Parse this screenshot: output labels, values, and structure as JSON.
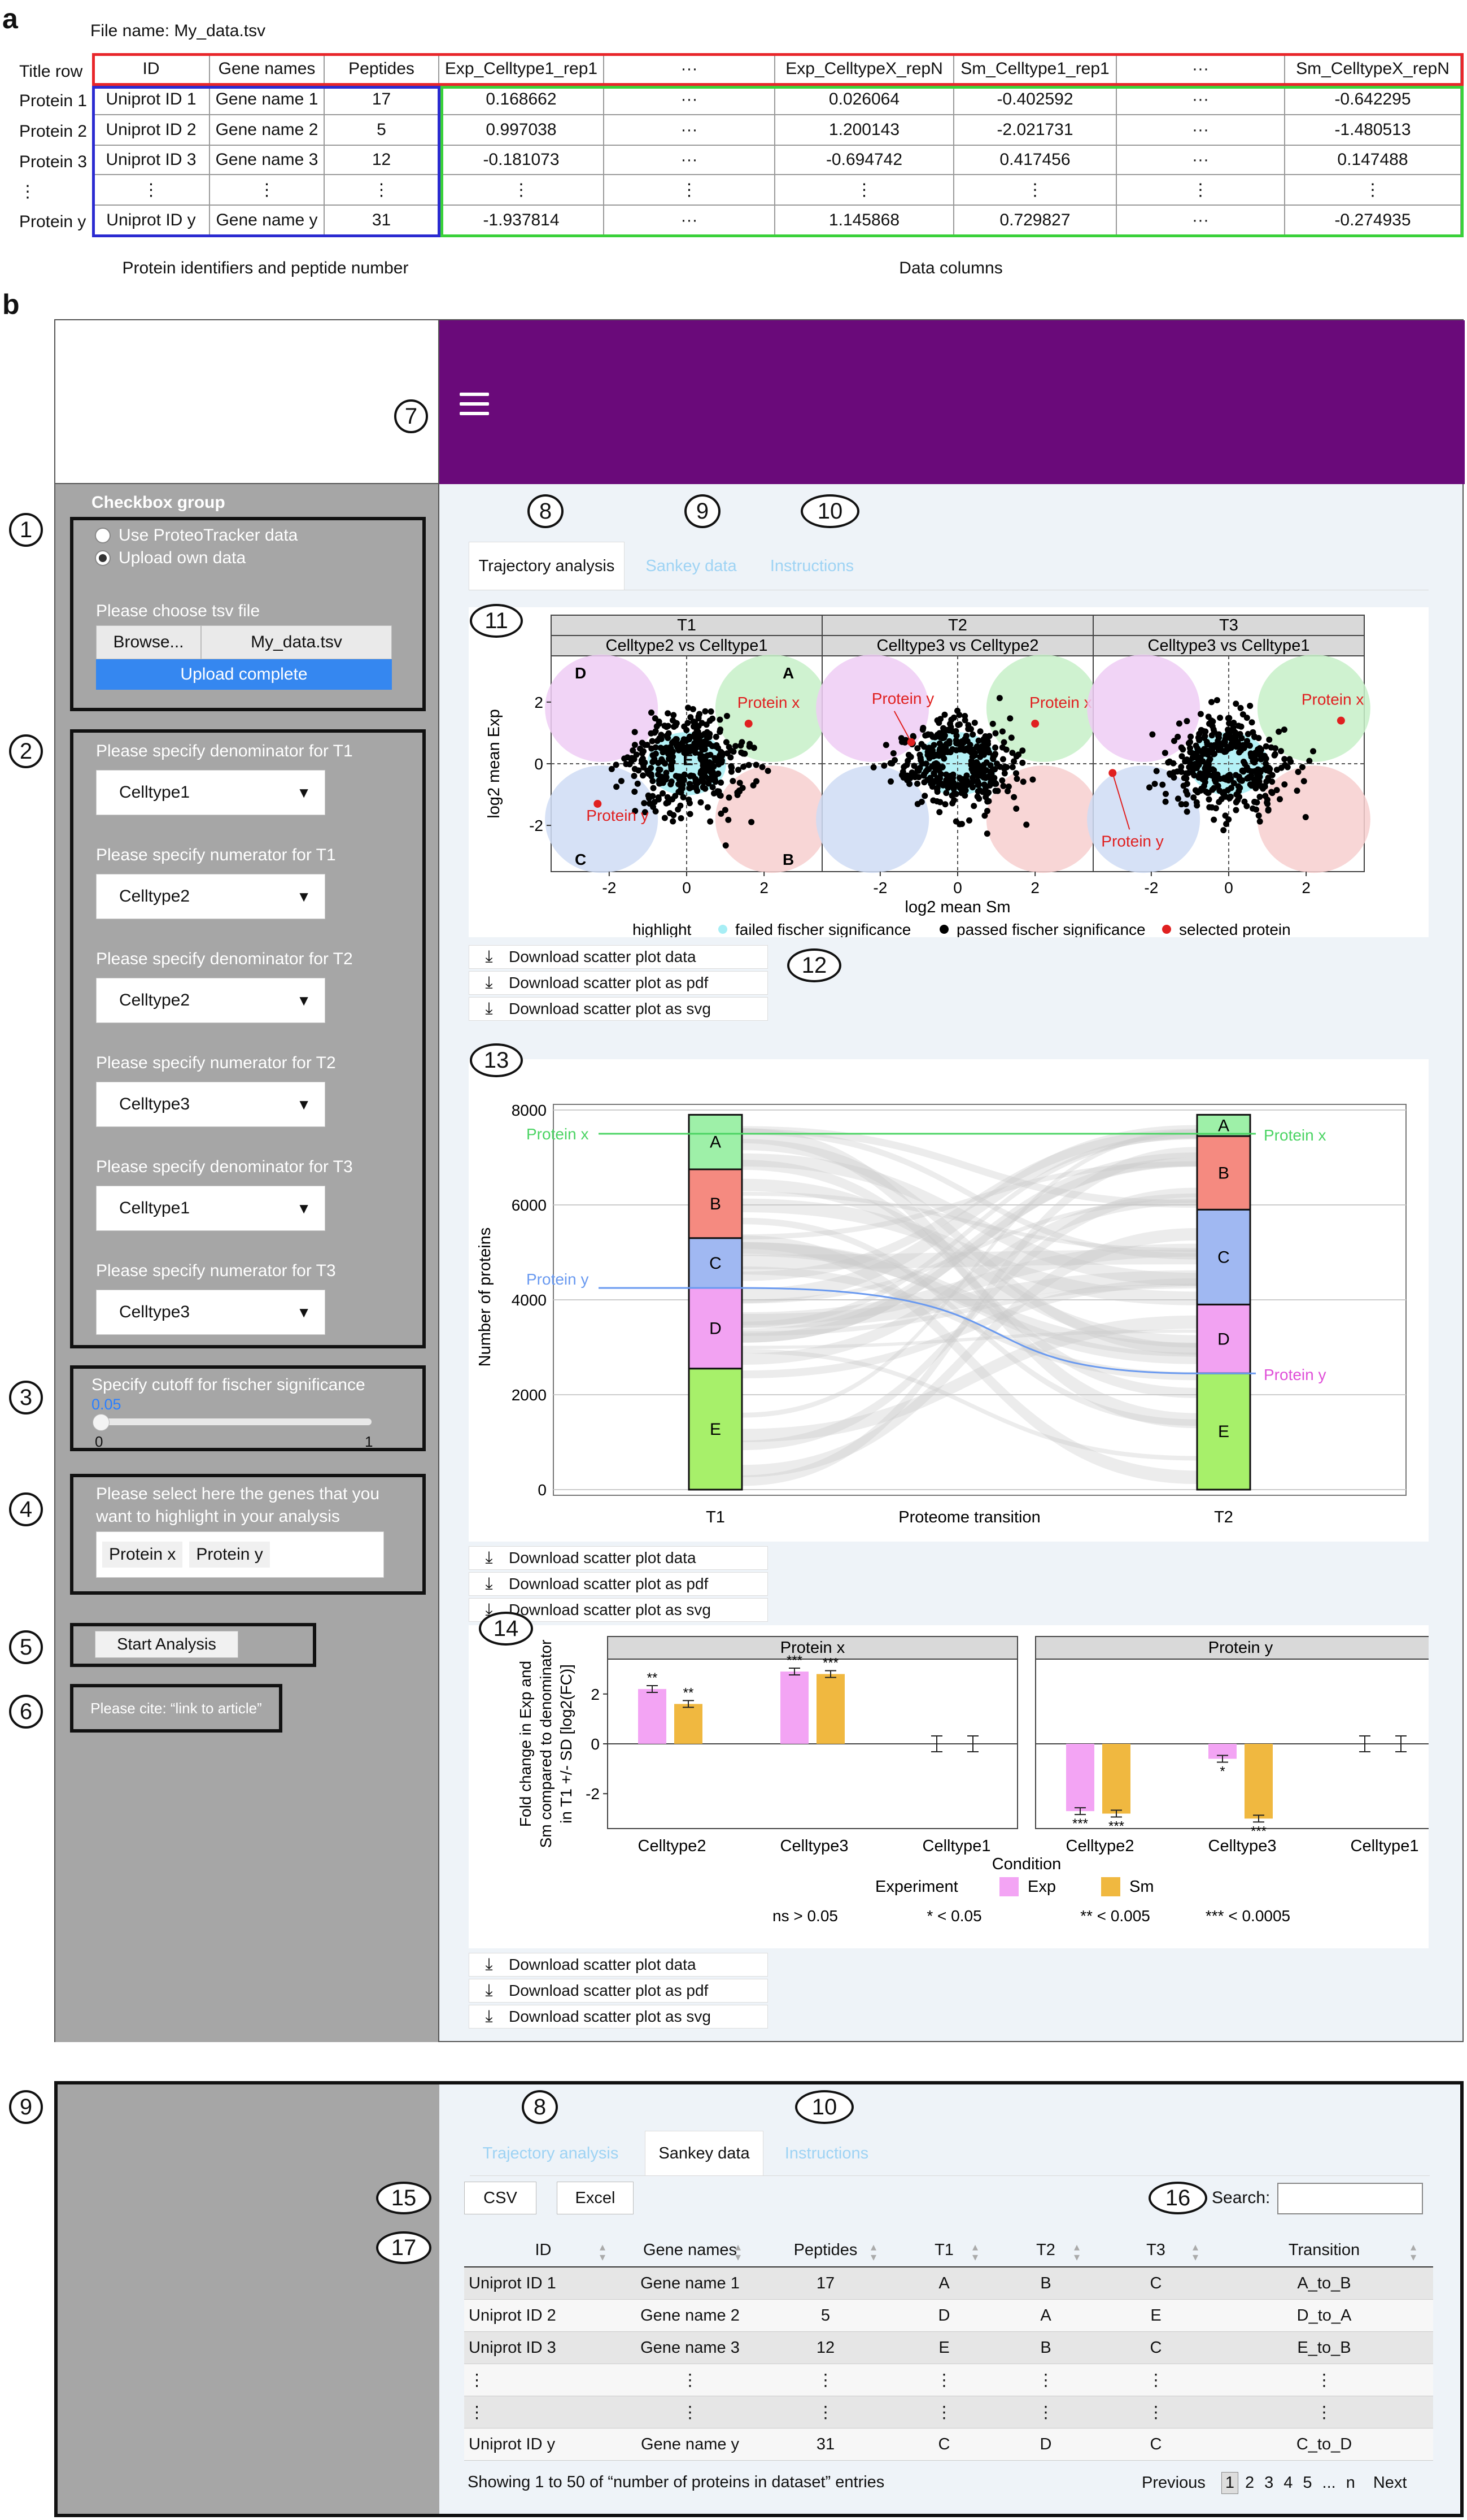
{
  "panel_a": {
    "label": "a",
    "file_name": "File name: My_data.tsv",
    "title_row_label": "Title row",
    "headers": [
      "ID",
      "Gene names",
      "Peptides",
      "Exp_Celltype1_rep1",
      "···",
      "Exp_CelltypeX_repN",
      "Sm_Celltype1_rep1",
      "···",
      "Sm_CelltypeX_repN"
    ],
    "row_labels": [
      "Protein 1",
      "Protein 2",
      "Protein 3",
      "⋮",
      "Protein y"
    ],
    "rows": [
      [
        "Uniprot ID 1",
        "Gene name 1",
        "17",
        "0.168662",
        "···",
        "0.026064",
        "-0.402592",
        "···",
        "-0.642295"
      ],
      [
        "Uniprot ID 2",
        "Gene name 2",
        "5",
        "0.997038",
        "···",
        "1.200143",
        "-2.021731",
        "···",
        "-1.480513"
      ],
      [
        "Uniprot ID 3",
        "Gene name 3",
        "12",
        "-0.181073",
        "···",
        "-0.694742",
        "0.417456",
        "···",
        "0.147488"
      ],
      [
        "⋮",
        "⋮",
        "⋮",
        "⋮",
        "⋮",
        "⋮",
        "⋮",
        "⋮",
        "⋮"
      ],
      [
        "Uniprot ID y",
        "Gene name y",
        "31",
        "-1.937814",
        "···",
        "1.145868",
        "0.729827",
        "···",
        "-0.274935"
      ]
    ],
    "caption_ids": "Protein identifiers and peptide number",
    "caption_data": "Data columns",
    "colors": {
      "title_box": "#e8262a",
      "id_box": "#2b2bd1",
      "data_box": "#3ad13a"
    }
  },
  "panel_b": {
    "label": "b",
    "header_color": "#6a0a7a",
    "menu_icon": "hamburger-menu-icon",
    "sidebar": {
      "checkbox_group_title": "Checkbox group",
      "radio_options": [
        "Use ProteoTracker data",
        "Upload own data"
      ],
      "radio_selected": 1,
      "choose_file_label": "Please choose tsv file",
      "browse_label": "Browse...",
      "file_value": "My_data.tsv",
      "upload_status": "Upload complete",
      "selects": [
        {
          "label": "Please specify denominator for T1",
          "value": "Celltype1"
        },
        {
          "label": "Please specify numerator for T1",
          "value": "Celltype2"
        },
        {
          "label": "Please specify denominator for T2",
          "value": "Celltype2"
        },
        {
          "label": "Please specify numerator for T2",
          "value": "Celltype3"
        },
        {
          "label": "Please specify denominator for T3",
          "value": "Celltype1"
        },
        {
          "label": "Please specify numerator for T3",
          "value": "Celltype3"
        }
      ],
      "cutoff_label": "Specify cutoff for fischer significance",
      "cutoff_value": "0.05",
      "cutoff_min": "0",
      "cutoff_max": "1",
      "genes_label": "Please select here the genes that you want to highlight in your analysis",
      "genes": [
        "Protein x",
        "Protein y"
      ],
      "start_label": "Start Analysis",
      "cite_label": "Please cite: “link to article”"
    },
    "callouts": [
      "1",
      "2",
      "3",
      "4",
      "5",
      "6",
      "7",
      "8",
      "9",
      "10",
      "11",
      "12",
      "13",
      "14"
    ],
    "tabs": [
      "Trajectory analysis",
      "Sankey data",
      "Instructions"
    ],
    "active_tab": 0,
    "scatter": {
      "facets": [
        {
          "top": "T1",
          "sub": "Celltype2 vs Celltype1"
        },
        {
          "top": "T2",
          "sub": "Celltype3 vs Celltype2"
        },
        {
          "top": "T3",
          "sub": "Celltype3 vs Celltype1"
        }
      ],
      "quadrants": [
        "A",
        "B",
        "C",
        "D",
        "E"
      ],
      "ylabel": "log2 mean Exp",
      "xlabel": "log2 mean Sm",
      "yticks": [
        "2",
        "0",
        "-2"
      ],
      "xticks": [
        "-2",
        "0",
        "2"
      ],
      "protein_x": "Protein x",
      "protein_y": "Protein y",
      "legend_title": "highlight",
      "legend": [
        "failed fischer significance",
        "passed fischer significance",
        "selected protein"
      ]
    },
    "sankey": {
      "ylabel": "Number of proteins",
      "xlabel": "Proteome transition",
      "yticks": [
        "8000",
        "6000",
        "4000",
        "2000",
        "0"
      ],
      "xticks": [
        "T1",
        "T2"
      ],
      "protein_x": "Protein x",
      "protein_y": "Protein y",
      "segment_labels": [
        "A",
        "B",
        "C",
        "D",
        "E"
      ]
    },
    "bars": {
      "facets": [
        "Protein x",
        "Protein y"
      ],
      "ylabel_lines": [
        "Fold change in Exp and",
        "Sm compared to denominator",
        "in T1 +/- SD [log2(FC)]"
      ],
      "yticks": [
        "2",
        "0",
        "-2"
      ],
      "categories": [
        "Celltype2",
        "Celltype3",
        "Celltype1"
      ],
      "xlabel": "Condition",
      "legend_title": "Experiment",
      "legend": [
        "Exp",
        "Sm"
      ],
      "sig_legend": [
        "ns > 0.05",
        "* < 0.05",
        "** < 0.005",
        "*** < 0.0005"
      ]
    },
    "download_labels": [
      "Download scatter plot data",
      "Download scatter plot as pdf",
      "Download scatter plot as svg"
    ]
  },
  "panel_c": {
    "callouts": [
      "9",
      "8",
      "10",
      "15",
      "16",
      "17"
    ],
    "tabs": [
      "Trajectory analysis",
      "Sankey data",
      "Instructions"
    ],
    "active_tab": 1,
    "export_buttons": [
      "CSV",
      "Excel"
    ],
    "search_label": "Search:",
    "search_value": "",
    "headers": [
      "ID",
      "Gene names",
      "Peptides",
      "T1",
      "T2",
      "T3",
      "Transition"
    ],
    "rows": [
      [
        "Uniprot ID 1",
        "Gene name 1",
        "17",
        "A",
        "B",
        "C",
        "A_to_B"
      ],
      [
        "Uniprot ID 2",
        "Gene name 2",
        "5",
        "D",
        "A",
        "E",
        "D_to_A"
      ],
      [
        "Uniprot ID 3",
        "Gene name 3",
        "12",
        "E",
        "B",
        "C",
        "E_to_B"
      ],
      [
        "⋮",
        "⋮",
        "⋮",
        "⋮",
        "⋮",
        "⋮",
        "⋮"
      ],
      [
        "⋮",
        "⋮",
        "⋮",
        "⋮",
        "⋮",
        "⋮",
        "⋮"
      ],
      [
        "Uniprot ID y",
        "Gene name y",
        "31",
        "C",
        "D",
        "C",
        "C_to_D"
      ]
    ],
    "footer_info": "Showing 1 to 50 of “number of proteins in dataset” entries",
    "pager": {
      "previous": "Previous",
      "pages": [
        "1",
        "2",
        "3",
        "4",
        "5",
        "...",
        "n"
      ],
      "current": "1",
      "next": "Next"
    }
  },
  "chart_data": [
    {
      "type": "scatter",
      "facets": [
        "T1",
        "T2",
        "T3"
      ],
      "xlabel": "log2 mean Sm",
      "ylabel": "log2 mean Exp",
      "xlim": [
        -3.5,
        3.5
      ],
      "ylim": [
        -3.5,
        3.5
      ],
      "highlighted": [
        {
          "facet": "T1",
          "name": "Protein x",
          "x": 1.6,
          "y": 1.3
        },
        {
          "facet": "T1",
          "name": "Protein y",
          "x": -2.3,
          "y": -1.3
        },
        {
          "facet": "T2",
          "name": "Protein y",
          "x": -1.2,
          "y": 0.7
        },
        {
          "facet": "T2",
          "name": "Protein x",
          "x": 2.0,
          "y": 1.3
        },
        {
          "facet": "T3",
          "name": "Protein x",
          "x": 2.9,
          "y": 1.4
        },
        {
          "facet": "T3",
          "name": "Protein y",
          "x": -3.0,
          "y": -0.3
        }
      ],
      "legend": [
        "failed fischer significance",
        "passed fischer significance",
        "selected protein"
      ]
    },
    {
      "type": "sankey",
      "xlabel": "Proteome transition",
      "ylabel": "Number of proteins",
      "ylim": [
        0,
        8000
      ],
      "stages": [
        "T1",
        "T2"
      ],
      "nodes": {
        "T1": [
          {
            "name": "A",
            "from": 6750,
            "to": 7900
          },
          {
            "name": "B",
            "from": 5300,
            "to": 6750
          },
          {
            "name": "C",
            "from": 4250,
            "to": 5300
          },
          {
            "name": "D",
            "from": 2550,
            "to": 4250
          },
          {
            "name": "E",
            "from": 0,
            "to": 2550
          }
        ],
        "T2": [
          {
            "name": "A",
            "from": 7450,
            "to": 7900
          },
          {
            "name": "B",
            "from": 5900,
            "to": 7450
          },
          {
            "name": "C",
            "from": 3900,
            "to": 5900
          },
          {
            "name": "D",
            "from": 2450,
            "to": 3900
          },
          {
            "name": "E",
            "from": 0,
            "to": 2450
          }
        ]
      },
      "highlighted": [
        {
          "name": "Protein x",
          "from": "A",
          "to": "A"
        },
        {
          "name": "Protein y",
          "from": "D",
          "to": "D"
        }
      ]
    },
    {
      "type": "bar",
      "facets": [
        "Protein x",
        "Protein y"
      ],
      "categories": [
        "Celltype2",
        "Celltype3",
        "Celltype1"
      ],
      "xlabel": "Condition",
      "ylabel": "Fold change in Exp and Sm compared to denominator in T1 +/- SD [log2(FC)]",
      "ylim": [
        -3.4,
        3.4
      ],
      "series": [
        {
          "name": "Exp",
          "color": "#f3a4f4",
          "values": {
            "Protein x": [
              2.2,
              2.9,
              0.0
            ],
            "Protein y": [
              -2.7,
              -0.6,
              0.0
            ]
          },
          "sig": {
            "Protein x": [
              "**",
              "***",
              ""
            ],
            "Protein y": [
              "***",
              "*",
              ""
            ]
          }
        },
        {
          "name": "Sm",
          "color": "#f0b840",
          "values": {
            "Protein x": [
              1.6,
              2.8,
              0.0
            ],
            "Protein y": [
              -2.8,
              -3.0,
              0.0
            ]
          },
          "sig": {
            "Protein x": [
              "**",
              "***",
              ""
            ],
            "Protein y": [
              "***",
              "***",
              ""
            ]
          }
        }
      ]
    }
  ]
}
